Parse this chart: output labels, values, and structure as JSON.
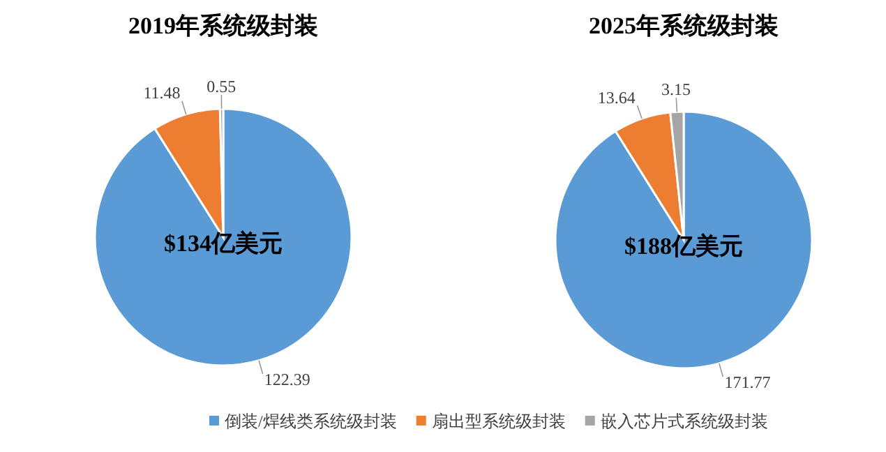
{
  "chart_data": [
    {
      "type": "pie",
      "title": "2019年系统级封装",
      "categories": [
        null,
        null,
        null
      ],
      "values": [
        122.39,
        11.48,
        0.55
      ],
      "colors": [
        "#5b9bd5",
        "#ed7d31",
        "#a5a5a5"
      ],
      "data_labels": true,
      "annotations": [
        "$134亿美元"
      ]
    },
    {
      "type": "pie",
      "title": "2025年系统级封装",
      "categories": [
        "倒装/焊线类系统级封装",
        "扇出型系统级封装",
        "嵌入芯片式系统级封装"
      ],
      "values": [
        171.77,
        13.64,
        3.15
      ],
      "colors": [
        "#5b9bd5",
        "#ed7d31",
        "#a5a5a5"
      ],
      "data_labels": true,
      "legend": "bottom",
      "annotations": [
        "$188亿美元"
      ]
    }
  ]
}
